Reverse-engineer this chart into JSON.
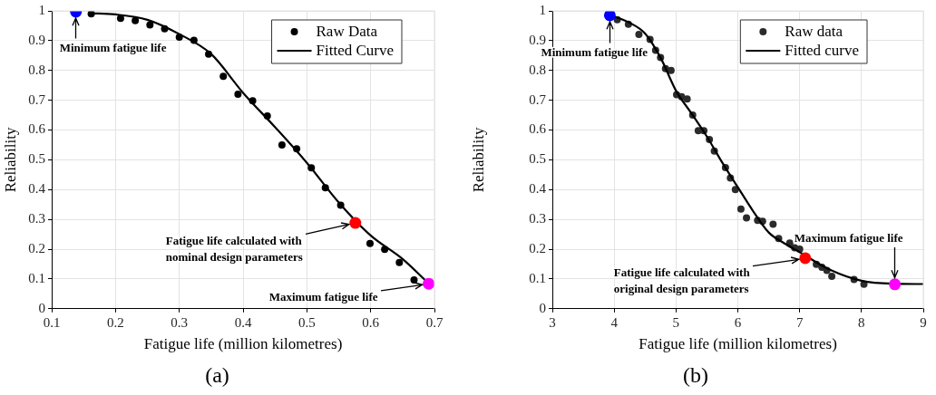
{
  "chart_data": [
    {
      "type": "scatter",
      "title": "(a)",
      "xlabel": "Fatigue life (million kilometres)",
      "ylabel": "Reliability",
      "xlim": [
        0.1,
        0.7
      ],
      "xticks": [
        0.1,
        0.2,
        0.3,
        0.4,
        0.5,
        0.6,
        0.7
      ],
      "ylim": [
        0,
        1
      ],
      "yticks": [
        0,
        0.1,
        0.2,
        0.3,
        0.4,
        0.5,
        0.6,
        0.7,
        0.8,
        0.9,
        1
      ],
      "grid": true,
      "legend": "top right",
      "marker": "circle",
      "series": [
        {
          "name": "Raw Data",
          "color": "#000000",
          "x": [
            0.162,
            0.208,
            0.231,
            0.254,
            0.277,
            0.3,
            0.323,
            0.346,
            0.369,
            0.392,
            0.415,
            0.438,
            0.461,
            0.484,
            0.507,
            0.529,
            0.553,
            0.599,
            0.622,
            0.645,
            0.668
          ],
          "values": [
            0.99,
            0.975,
            0.967,
            0.953,
            0.94,
            0.912,
            0.901,
            0.855,
            0.78,
            0.72,
            0.698,
            0.647,
            0.55,
            0.537,
            0.473,
            0.406,
            0.348,
            0.219,
            0.199,
            0.155,
            0.097
          ]
        },
        {
          "name": "Fitted Curve",
          "type": "line",
          "color": "#000000",
          "line_style": "solid",
          "marker": "none",
          "x": [
            0.16,
            0.2,
            0.25,
            0.3,
            0.35,
            0.4,
            0.45,
            0.5,
            0.55,
            0.6,
            0.65,
            0.69
          ],
          "values": [
            0.992,
            0.988,
            0.97,
            0.922,
            0.855,
            0.725,
            0.61,
            0.49,
            0.357,
            0.246,
            0.167,
            0.087
          ]
        },
        {
          "color": "#0000ff",
          "x": [
            0.138
          ],
          "values": [
            0.997
          ]
        },
        {
          "color": "#ff0000",
          "x": [
            0.576
          ],
          "values": [
            0.288
          ]
        },
        {
          "color": "#ff00ff",
          "x": [
            0.691
          ],
          "values": [
            0.084
          ]
        }
      ],
      "annotations": [
        {
          "text": "Minimum fatigue life",
          "x": 0.138,
          "y": 0.997
        },
        {
          "text": "Fatigue life calculated with\nnominal design parameters",
          "x": 0.576,
          "y": 0.288
        },
        {
          "text": "Maximum fatigue life",
          "x": 0.691,
          "y": 0.084
        }
      ]
    },
    {
      "type": "scatter",
      "title": "(b)",
      "xlabel": "Fatigue life (million kilometres)",
      "ylabel": "Reliability",
      "xlim": [
        3,
        9
      ],
      "xticks": [
        3,
        4,
        5,
        6,
        7,
        8,
        9
      ],
      "ylim": [
        0,
        1
      ],
      "yticks": [
        0,
        0.1,
        0.2,
        0.3,
        0.4,
        0.5,
        0.6,
        0.7,
        0.8,
        0.9,
        1
      ],
      "grid": true,
      "legend": "top right",
      "marker": "circle",
      "series": [
        {
          "name": "Raw data",
          "color": "#2b2b2b",
          "x": [
            4.05,
            4.23,
            4.4,
            4.58,
            4.67,
            4.75,
            4.83,
            4.92,
            5.01,
            5.09,
            5.18,
            5.27,
            5.36,
            5.45,
            5.54,
            5.62,
            5.8,
            5.88,
            5.96,
            6.05,
            6.14,
            6.32,
            6.4,
            6.57,
            6.66,
            6.84,
            6.92,
            7.0,
            7.27,
            7.36,
            7.44,
            7.52,
            7.88,
            8.04
          ],
          "values": [
            0.97,
            0.955,
            0.921,
            0.904,
            0.868,
            0.843,
            0.806,
            0.8,
            0.719,
            0.712,
            0.704,
            0.65,
            0.598,
            0.598,
            0.568,
            0.529,
            0.474,
            0.439,
            0.4,
            0.335,
            0.305,
            0.297,
            0.294,
            0.284,
            0.236,
            0.221,
            0.205,
            0.2,
            0.149,
            0.139,
            0.129,
            0.109,
            0.098,
            0.082
          ]
        },
        {
          "name": "Fitted curve",
          "type": "line",
          "color": "#000000",
          "line_style": "solid",
          "marker": "none",
          "x": [
            3.95,
            4.25,
            4.5,
            4.75,
            5.0,
            5.25,
            5.5,
            5.75,
            6.0,
            6.25,
            6.5,
            6.75,
            7.0,
            7.5,
            8.0,
            8.5,
            9.0
          ],
          "values": [
            0.985,
            0.96,
            0.924,
            0.843,
            0.732,
            0.656,
            0.578,
            0.49,
            0.408,
            0.327,
            0.256,
            0.22,
            0.19,
            0.13,
            0.094,
            0.084,
            0.083
          ]
        },
        {
          "color": "#0000ff",
          "x": [
            3.93
          ],
          "values": [
            0.985
          ]
        },
        {
          "color": "#ff0000",
          "x": [
            7.09
          ],
          "values": [
            0.17
          ]
        },
        {
          "color": "#ff00ff",
          "x": [
            8.54
          ],
          "values": [
            0.082
          ]
        }
      ],
      "annotations": [
        {
          "text": "Minimum fatigue life",
          "x": 3.93,
          "y": 0.985
        },
        {
          "text": "Maximum fatigue life",
          "x": 8.54,
          "y": 0.082
        },
        {
          "text": "Fatigue life calculated with\noriginal design parameters",
          "x": 7.09,
          "y": 0.17
        }
      ]
    }
  ]
}
